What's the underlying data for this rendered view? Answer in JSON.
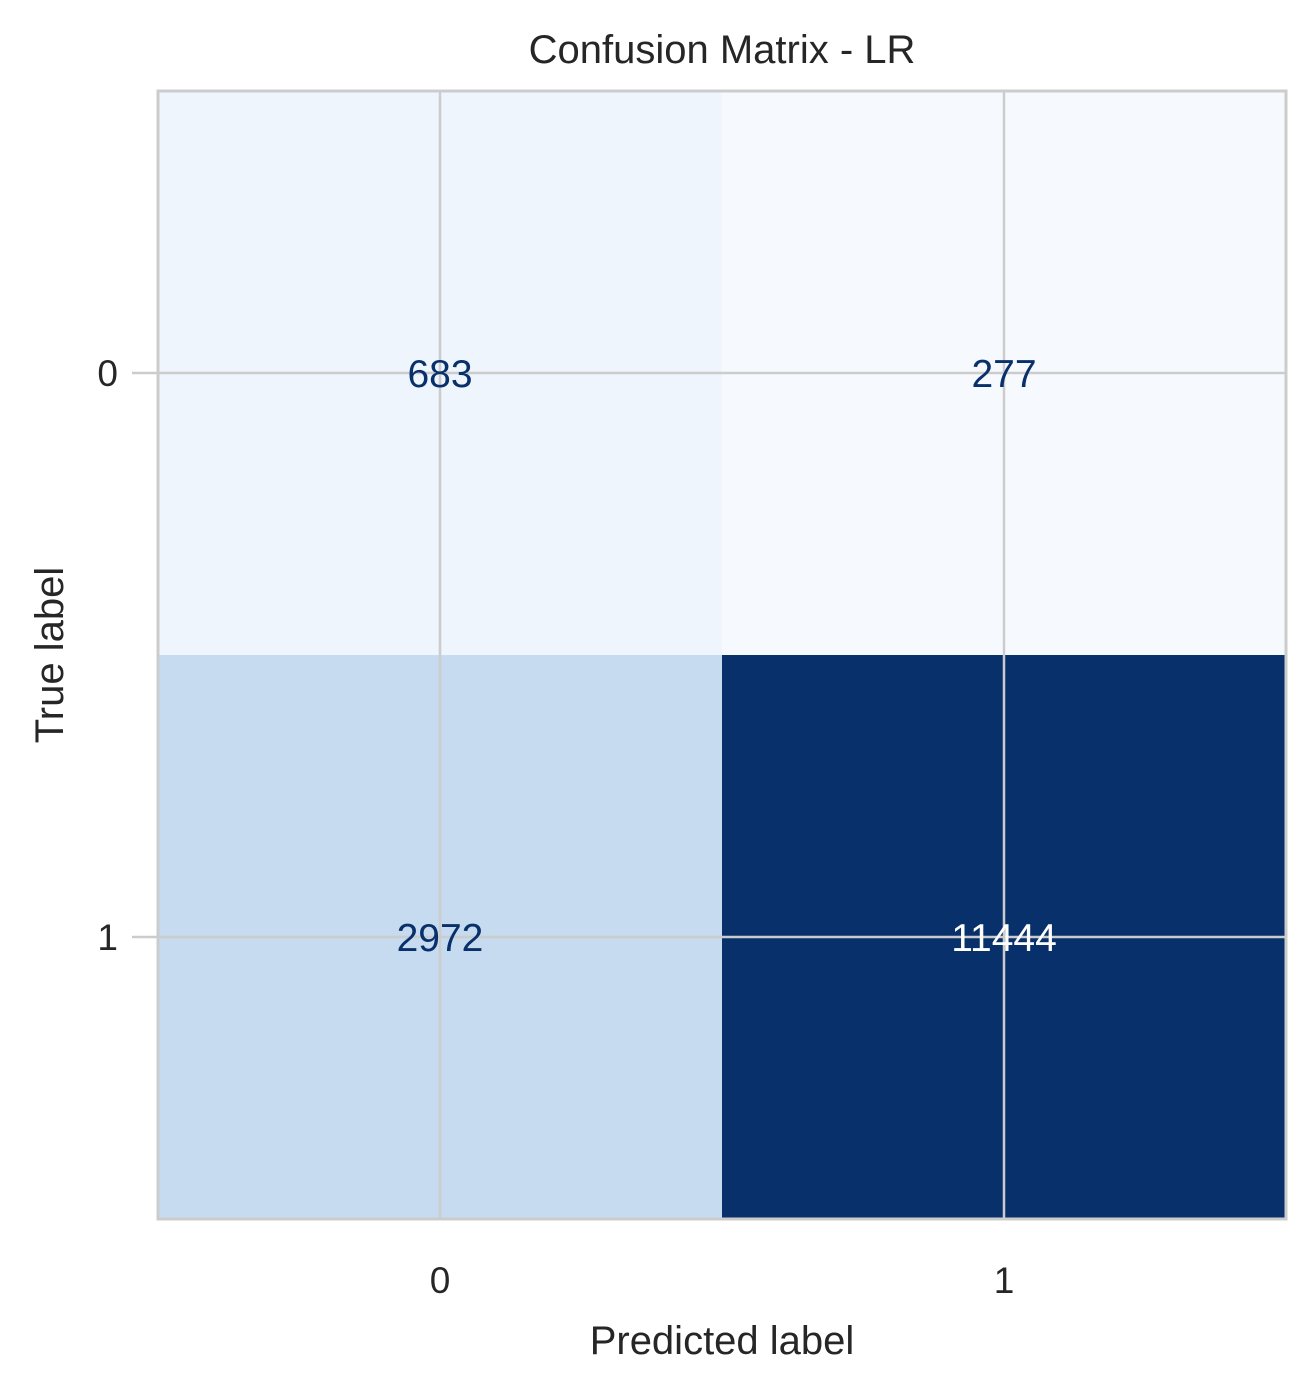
{
  "chart_data": {
    "type": "heatmap",
    "title": "Confusion Matrix - LR",
    "xlabel": "Predicted label",
    "ylabel": "True label",
    "x_categories": [
      "0",
      "1"
    ],
    "y_categories": [
      "0",
      "1"
    ],
    "values": [
      [
        683,
        277
      ],
      [
        2972,
        11444
      ]
    ],
    "value_labels": [
      [
        "683",
        "277"
      ],
      [
        "2972",
        "11444"
      ]
    ],
    "colormap": "Blues",
    "grid": true,
    "colors": {
      "cells": [
        [
          "#eef5fc",
          "#f6f9fe"
        ],
        [
          "#c6dbef",
          "#08306b"
        ]
      ],
      "dark_text": "#08306b",
      "light_text": "#ffffff",
      "grid": "#cccccc",
      "text": "#262626"
    }
  }
}
